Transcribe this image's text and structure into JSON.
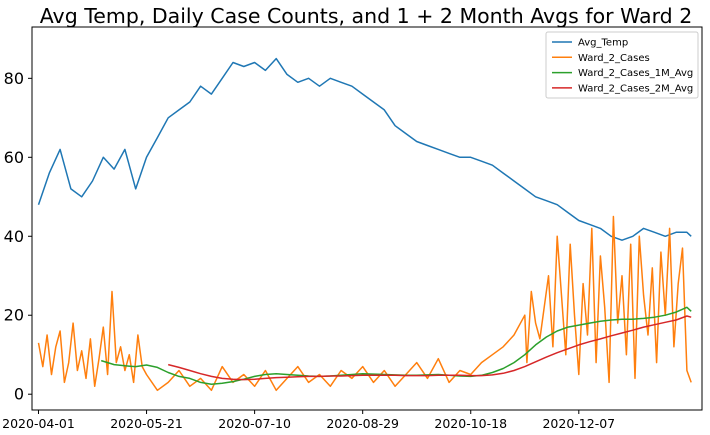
{
  "chart_data": {
    "type": "line",
    "title": "Avg Temp, Daily Case Counts, and 1 + 2 Month Avgs for Ward 2",
    "xlabel": "",
    "ylabel": "",
    "x_ticks": [
      "2020-04-01",
      "2020-05-21",
      "2020-07-10",
      "2020-08-29",
      "2020-10-18",
      "2020-12-07"
    ],
    "x_tick_days": [
      0,
      50,
      100,
      150,
      200,
      250
    ],
    "x_range": [
      -3,
      307
    ],
    "y_ticks": [
      0,
      20,
      40,
      60,
      80
    ],
    "ylim": [
      -4,
      93
    ],
    "grid": false,
    "legend_position": "top-right",
    "series": [
      {
        "name": "Avg_Temp",
        "color": "#1f77b4",
        "x": [
          0,
          5,
          10,
          15,
          20,
          25,
          30,
          35,
          40,
          45,
          50,
          55,
          60,
          65,
          70,
          75,
          80,
          85,
          90,
          95,
          100,
          105,
          110,
          115,
          120,
          125,
          130,
          135,
          140,
          145,
          150,
          155,
          160,
          165,
          170,
          175,
          180,
          185,
          190,
          195,
          200,
          205,
          210,
          215,
          220,
          225,
          230,
          235,
          240,
          245,
          250,
          255,
          260,
          265,
          270,
          275,
          280,
          285,
          290,
          295,
          300,
          302
        ],
        "y": [
          48,
          56,
          62,
          52,
          50,
          54,
          60,
          57,
          62,
          52,
          60,
          65,
          70,
          72,
          74,
          78,
          76,
          80,
          84,
          83,
          84,
          82,
          85,
          81,
          79,
          80,
          78,
          80,
          79,
          78,
          76,
          74,
          72,
          68,
          66,
          64,
          63,
          62,
          61,
          60,
          60,
          59,
          58,
          56,
          54,
          52,
          50,
          49,
          48,
          46,
          44,
          43,
          42,
          40,
          39,
          40,
          42,
          41,
          40,
          41,
          41,
          40
        ]
      },
      {
        "name": "Ward_2_Cases",
        "color": "#ff7f0e",
        "x": [
          0,
          2,
          4,
          6,
          8,
          10,
          12,
          14,
          16,
          18,
          20,
          22,
          24,
          26,
          28,
          30,
          32,
          34,
          36,
          38,
          40,
          42,
          44,
          46,
          48,
          50,
          55,
          60,
          65,
          70,
          75,
          80,
          85,
          90,
          95,
          100,
          105,
          110,
          115,
          120,
          125,
          130,
          135,
          140,
          145,
          150,
          155,
          160,
          165,
          170,
          175,
          180,
          185,
          190,
          195,
          200,
          205,
          210,
          215,
          220,
          225,
          226,
          228,
          230,
          232,
          234,
          236,
          238,
          240,
          242,
          244,
          246,
          248,
          250,
          252,
          254,
          256,
          258,
          260,
          262,
          264,
          266,
          268,
          270,
          272,
          274,
          276,
          278,
          280,
          282,
          284,
          286,
          288,
          290,
          292,
          294,
          296,
          298,
          300,
          302
        ],
        "y": [
          13,
          7,
          15,
          5,
          12,
          16,
          3,
          8,
          18,
          6,
          11,
          4,
          14,
          2,
          9,
          17,
          5,
          26,
          8,
          12,
          6,
          10,
          3,
          15,
          7,
          5,
          1,
          3,
          6,
          2,
          4,
          1,
          7,
          3,
          5,
          2,
          6,
          1,
          4,
          7,
          3,
          5,
          2,
          6,
          4,
          7,
          3,
          6,
          2,
          5,
          8,
          4,
          9,
          3,
          6,
          5,
          8,
          10,
          12,
          15,
          20,
          8,
          26,
          18,
          14,
          22,
          30,
          12,
          40,
          25,
          10,
          38,
          20,
          5,
          28,
          15,
          42,
          8,
          35,
          22,
          3,
          45,
          18,
          30,
          10,
          38,
          4,
          40,
          25,
          15,
          32,
          8,
          36,
          20,
          42,
          12,
          28,
          37,
          6,
          3
        ]
      },
      {
        "name": "Ward_2_Cases_1M_Avg",
        "color": "#2ca02c",
        "x": [
          29,
          35,
          40,
          45,
          50,
          55,
          60,
          65,
          70,
          75,
          80,
          85,
          90,
          95,
          100,
          105,
          110,
          115,
          120,
          125,
          130,
          135,
          140,
          145,
          150,
          155,
          160,
          165,
          170,
          175,
          180,
          185,
          190,
          195,
          200,
          205,
          210,
          215,
          220,
          225,
          230,
          235,
          240,
          245,
          250,
          255,
          260,
          265,
          270,
          275,
          280,
          285,
          290,
          295,
          300,
          302
        ],
        "y": [
          8.5,
          7.5,
          7.2,
          7.0,
          7.4,
          6.8,
          5.5,
          4.5,
          4.0,
          3.0,
          2.5,
          2.8,
          3.2,
          3.8,
          4.5,
          5.0,
          5.2,
          5.0,
          4.8,
          4.6,
          4.5,
          4.6,
          4.8,
          5.0,
          5.2,
          5.1,
          5.0,
          4.9,
          4.8,
          4.8,
          4.9,
          5.0,
          4.8,
          4.6,
          4.5,
          4.8,
          5.5,
          6.5,
          8.0,
          10.0,
          12.5,
          14.5,
          16.0,
          17.0,
          17.5,
          18.0,
          18.5,
          18.8,
          19.0,
          19.0,
          19.2,
          19.5,
          20.0,
          20.8,
          22.0,
          21.0
        ]
      },
      {
        "name": "Ward_2_Cases_2M_Avg",
        "color": "#d62728",
        "x": [
          60,
          65,
          70,
          75,
          80,
          85,
          90,
          95,
          100,
          105,
          110,
          115,
          120,
          125,
          130,
          135,
          140,
          145,
          150,
          155,
          160,
          165,
          170,
          175,
          180,
          185,
          190,
          195,
          200,
          205,
          210,
          215,
          220,
          225,
          230,
          235,
          240,
          245,
          250,
          255,
          260,
          265,
          270,
          275,
          280,
          285,
          290,
          295,
          300,
          302
        ],
        "y": [
          7.5,
          6.8,
          6.0,
          5.2,
          4.5,
          4.0,
          3.8,
          3.7,
          3.8,
          4.0,
          4.2,
          4.3,
          4.4,
          4.5,
          4.5,
          4.6,
          4.6,
          4.7,
          4.8,
          4.8,
          4.8,
          4.8,
          4.7,
          4.7,
          4.7,
          4.8,
          4.8,
          4.8,
          4.7,
          4.7,
          4.9,
          5.3,
          6.0,
          7.0,
          8.2,
          9.4,
          10.5,
          11.5,
          12.5,
          13.3,
          14.0,
          14.8,
          15.5,
          16.2,
          17.0,
          17.6,
          18.2,
          18.8,
          19.8,
          19.5
        ]
      }
    ]
  }
}
